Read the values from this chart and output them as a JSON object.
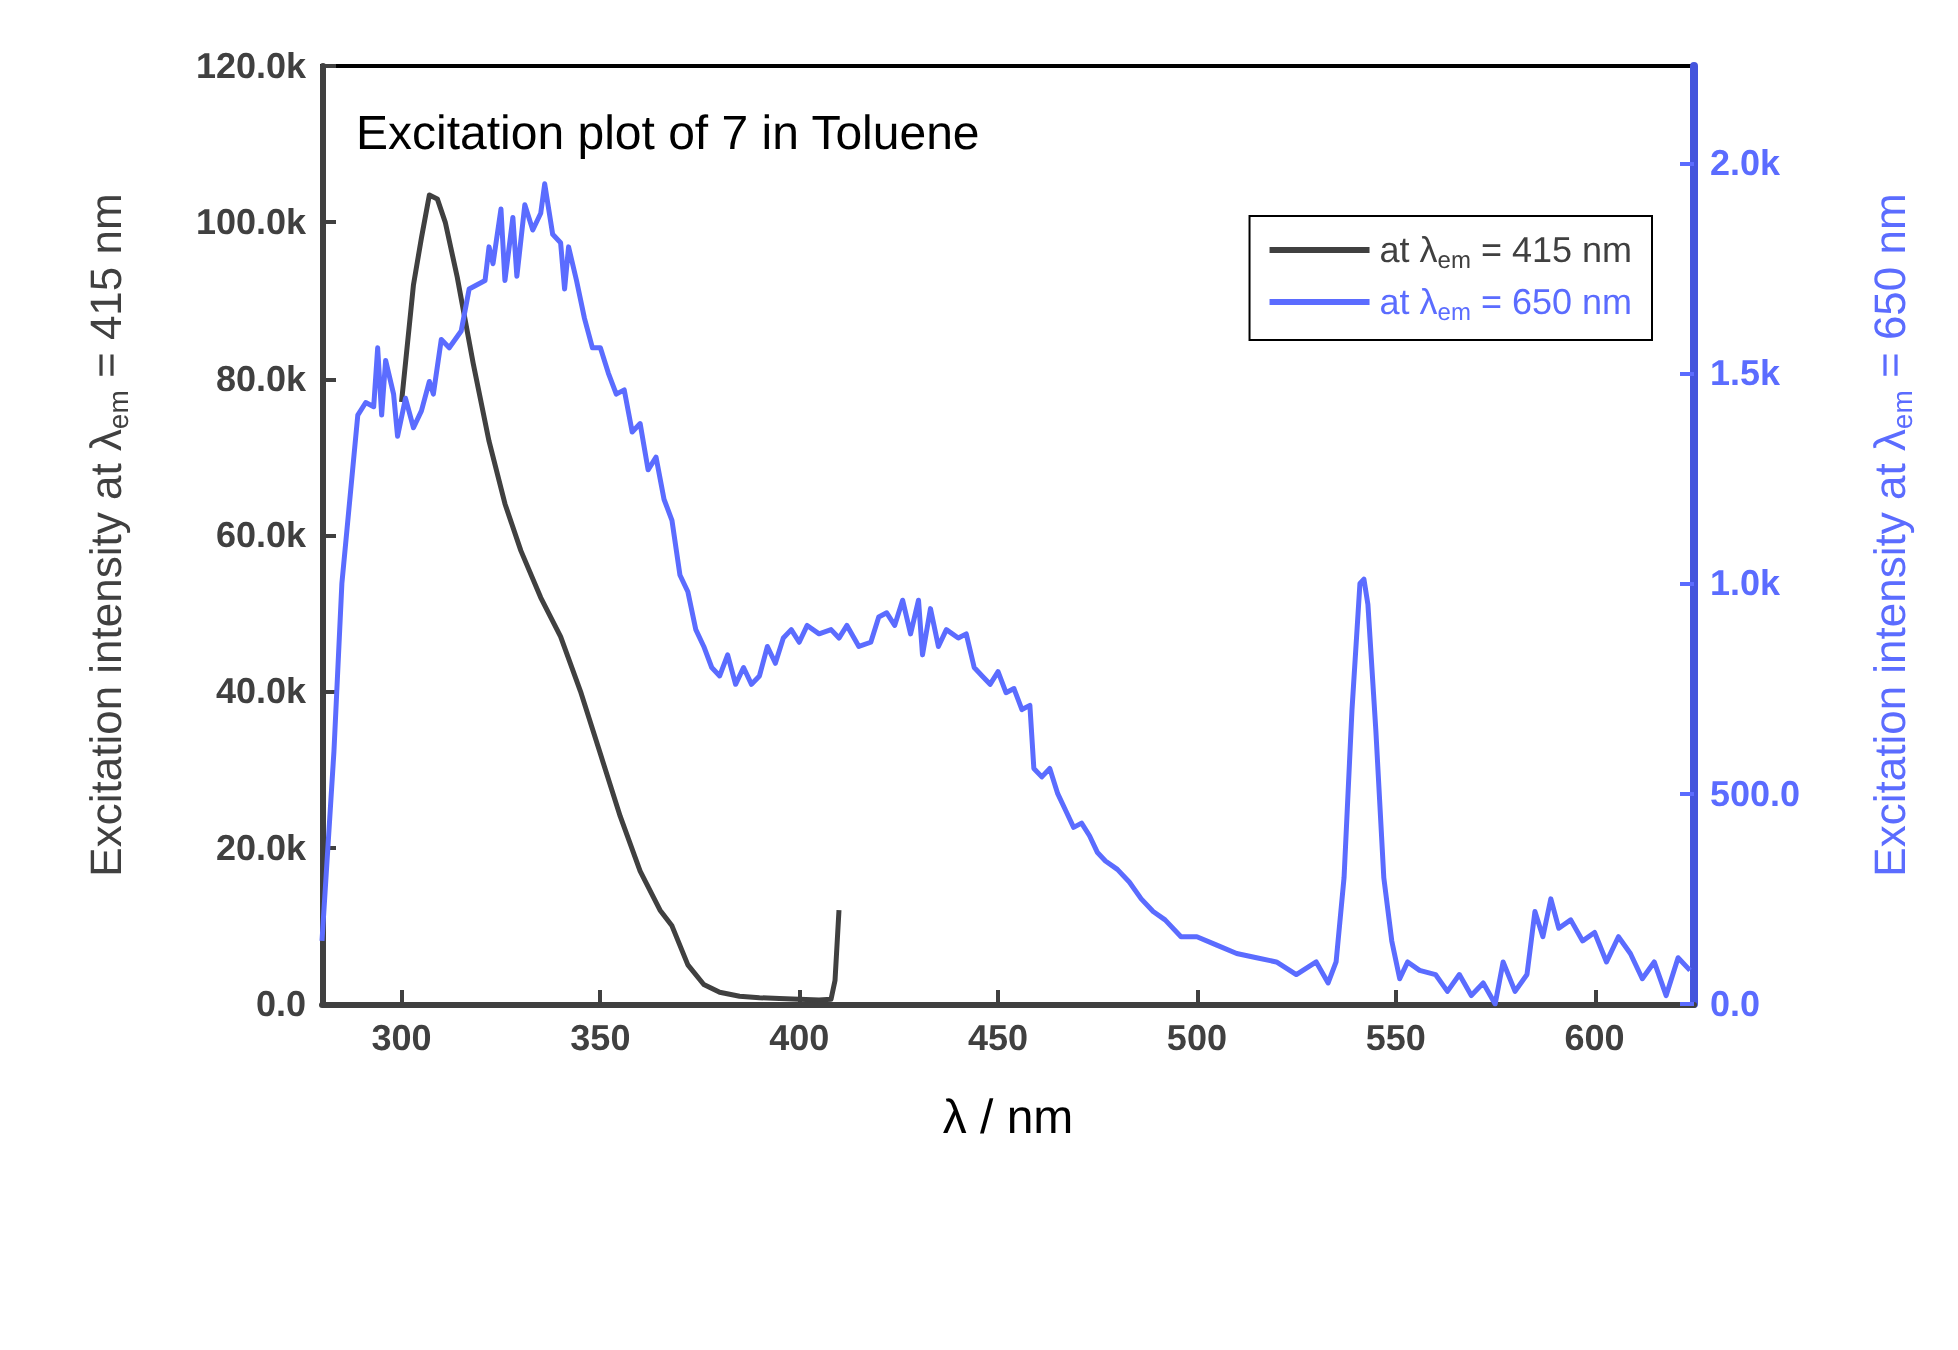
{
  "chart_data": {
    "type": "line",
    "title": "Excitation plot of 7 in Toluene",
    "xlabel": "λ / nm",
    "ylabel": "Excitation intensity at λ$_{em}$ = 415 nm",
    "y2label": "Excitation intensity at λ$_{em}$ = 650 nm",
    "xlim": [
      280,
      625
    ],
    "xticks": [
      300,
      350,
      400,
      450,
      500,
      550,
      600
    ],
    "ylim": [
      0,
      120000
    ],
    "yticks": [
      {
        "value": 0,
        "label": "0.0"
      },
      {
        "value": 20000,
        "label": "20.0k"
      },
      {
        "value": 40000,
        "label": "40.0k"
      },
      {
        "value": 60000,
        "label": "60.0k"
      },
      {
        "value": 80000,
        "label": "80.0k"
      },
      {
        "value": 100000,
        "label": "100.0k"
      },
      {
        "value": 120000,
        "label": "120.0k"
      }
    ],
    "y2lim": [
      0,
      2230
    ],
    "y2ticks": [
      {
        "value": 0,
        "label": "0.0"
      },
      {
        "value": 500,
        "label": "500.0"
      },
      {
        "value": 1000,
        "label": "1.0k"
      },
      {
        "value": 1500,
        "label": "1.5k"
      },
      {
        "value": 2000,
        "label": "2.0k"
      }
    ],
    "legend": "top right",
    "grid": false,
    "marker": "none",
    "line_style": "solid",
    "series": [
      {
        "name": "at λ$_{em}$ = 415 nm",
        "color": "#404040",
        "x": [
          300,
          303,
          305,
          307,
          309,
          311,
          314,
          318,
          322,
          326,
          330,
          335,
          340,
          345,
          350,
          355,
          360,
          365,
          368,
          372,
          376,
          380,
          385,
          390,
          395,
          400,
          405,
          408,
          409,
          410
        ],
        "values": [
          77000,
          92000,
          98000,
          103500,
          103000,
          100000,
          93000,
          82000,
          72000,
          64000,
          58000,
          52000,
          47000,
          40000,
          32000,
          24000,
          17000,
          12000,
          10000,
          5000,
          2500,
          1500,
          1000,
          800,
          700,
          600,
          500,
          600,
          3000,
          12000
        ]
      },
      {
        "name": "at λ$_{em}$ = 650 nm",
        "color": "#5b6cff",
        "axis": "y2",
        "x": [
          280,
          283,
          285,
          287,
          289,
          291,
          293,
          294,
          295,
          296,
          298,
          299,
          301,
          303,
          305,
          307,
          308,
          310,
          312,
          315,
          317,
          319,
          321,
          322,
          323,
          325,
          326,
          328,
          329,
          331,
          333,
          335,
          336,
          338,
          340,
          341,
          342,
          344,
          346,
          348,
          350,
          352,
          354,
          356,
          358,
          360,
          362,
          364,
          366,
          368,
          370,
          372,
          374,
          376,
          378,
          380,
          382,
          384,
          386,
          388,
          390,
          392,
          394,
          396,
          398,
          400,
          402,
          405,
          408,
          410,
          412,
          415,
          418,
          420,
          422,
          424,
          426,
          428,
          430,
          431,
          433,
          435,
          437,
          440,
          442,
          444,
          446,
          448,
          450,
          452,
          454,
          456,
          458,
          459,
          461,
          463,
          465,
          467,
          469,
          471,
          473,
          475,
          477,
          480,
          483,
          486,
          489,
          492,
          496,
          500,
          505,
          510,
          515,
          520,
          525,
          530,
          533,
          535,
          537,
          539,
          541,
          542,
          543,
          545,
          547,
          549,
          551,
          553,
          556,
          560,
          563,
          566,
          569,
          572,
          575,
          577,
          580,
          583,
          585,
          587,
          589,
          591,
          594,
          597,
          600,
          603,
          606,
          609,
          612,
          615,
          618,
          621,
          624
        ],
        "values": [
          150,
          600,
          1000,
          1200,
          1400,
          1430,
          1420,
          1560,
          1400,
          1530,
          1450,
          1350,
          1440,
          1370,
          1410,
          1480,
          1450,
          1580,
          1560,
          1600,
          1700,
          1710,
          1720,
          1800,
          1760,
          1890,
          1720,
          1870,
          1730,
          1900,
          1840,
          1880,
          1950,
          1830,
          1810,
          1700,
          1800,
          1720,
          1630,
          1560,
          1560,
          1500,
          1450,
          1460,
          1360,
          1380,
          1270,
          1300,
          1200,
          1150,
          1020,
          980,
          890,
          850,
          800,
          780,
          830,
          760,
          800,
          760,
          780,
          850,
          810,
          870,
          890,
          860,
          900,
          880,
          890,
          870,
          900,
          850,
          860,
          920,
          930,
          900,
          960,
          880,
          960,
          830,
          940,
          850,
          890,
          870,
          880,
          800,
          780,
          760,
          790,
          740,
          750,
          700,
          710,
          560,
          540,
          560,
          500,
          460,
          420,
          430,
          400,
          360,
          340,
          320,
          290,
          250,
          220,
          200,
          160,
          160,
          140,
          120,
          110,
          100,
          70,
          100,
          50,
          100,
          300,
          700,
          1000,
          1010,
          950,
          650,
          300,
          150,
          60,
          100,
          80,
          70,
          30,
          70,
          20,
          50,
          0,
          100,
          30,
          70,
          220,
          160,
          250,
          180,
          200,
          150,
          170,
          100,
          160,
          120,
          60,
          100,
          20,
          110,
          80
        ]
      }
    ]
  }
}
